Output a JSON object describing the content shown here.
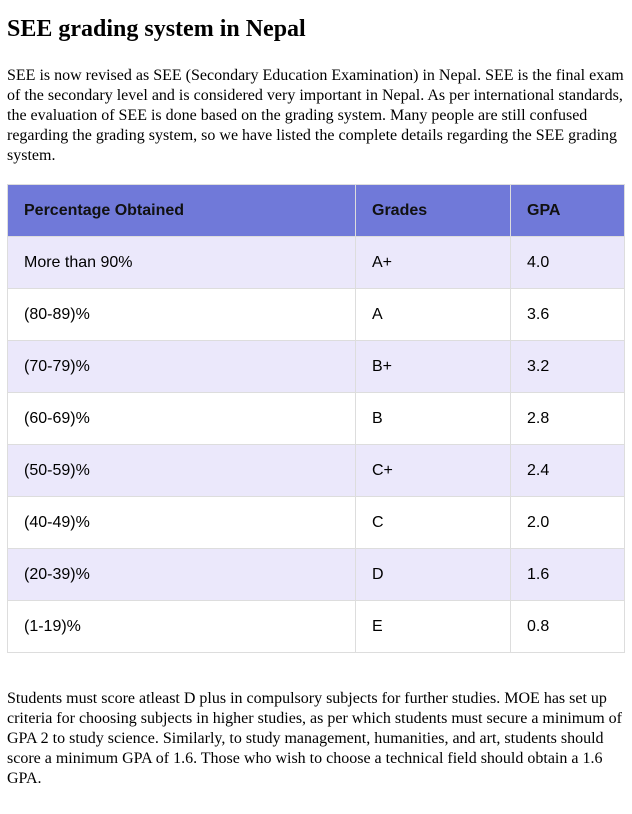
{
  "header": {
    "title": "SEE grading system in Nepal"
  },
  "intro": "SEE is now revised as SEE (Secondary Education Examination) in Nepal. SEE is the final exam of the secondary level and is considered very important in Nepal. As per international standards, the evaluation of SEE is done based on the grading system. Many people are still confused regarding the grading system, so we have listed the complete details regarding the SEE grading system.",
  "table": {
    "columns": [
      "Percentage Obtained",
      "Grades",
      "GPA"
    ],
    "rows": [
      [
        "More than 90%",
        "A+",
        "4.0"
      ],
      [
        "(80-89)%",
        "A",
        "3.6"
      ],
      [
        "(70-79)%",
        "B+",
        "3.2"
      ],
      [
        "(60-69)%",
        "B",
        "2.8"
      ],
      [
        "(50-59)%",
        "C+",
        "2.4"
      ],
      [
        "(40-49)%",
        "C",
        "2.0"
      ],
      [
        "(20-39)%",
        "D",
        "1.6"
      ],
      [
        "(1-19)%",
        "E",
        "0.8"
      ]
    ]
  },
  "outro": "Students must score atleast D plus in compulsory subjects for further studies. MOE has set up criteria for choosing subjects in higher studies, as per which students must secure a minimum of GPA 2 to study science. Similarly, to study management, humanities, and art, students should score a minimum GPA of 1.6. Those who wish to choose a technical field should obtain a 1.6 GPA."
}
